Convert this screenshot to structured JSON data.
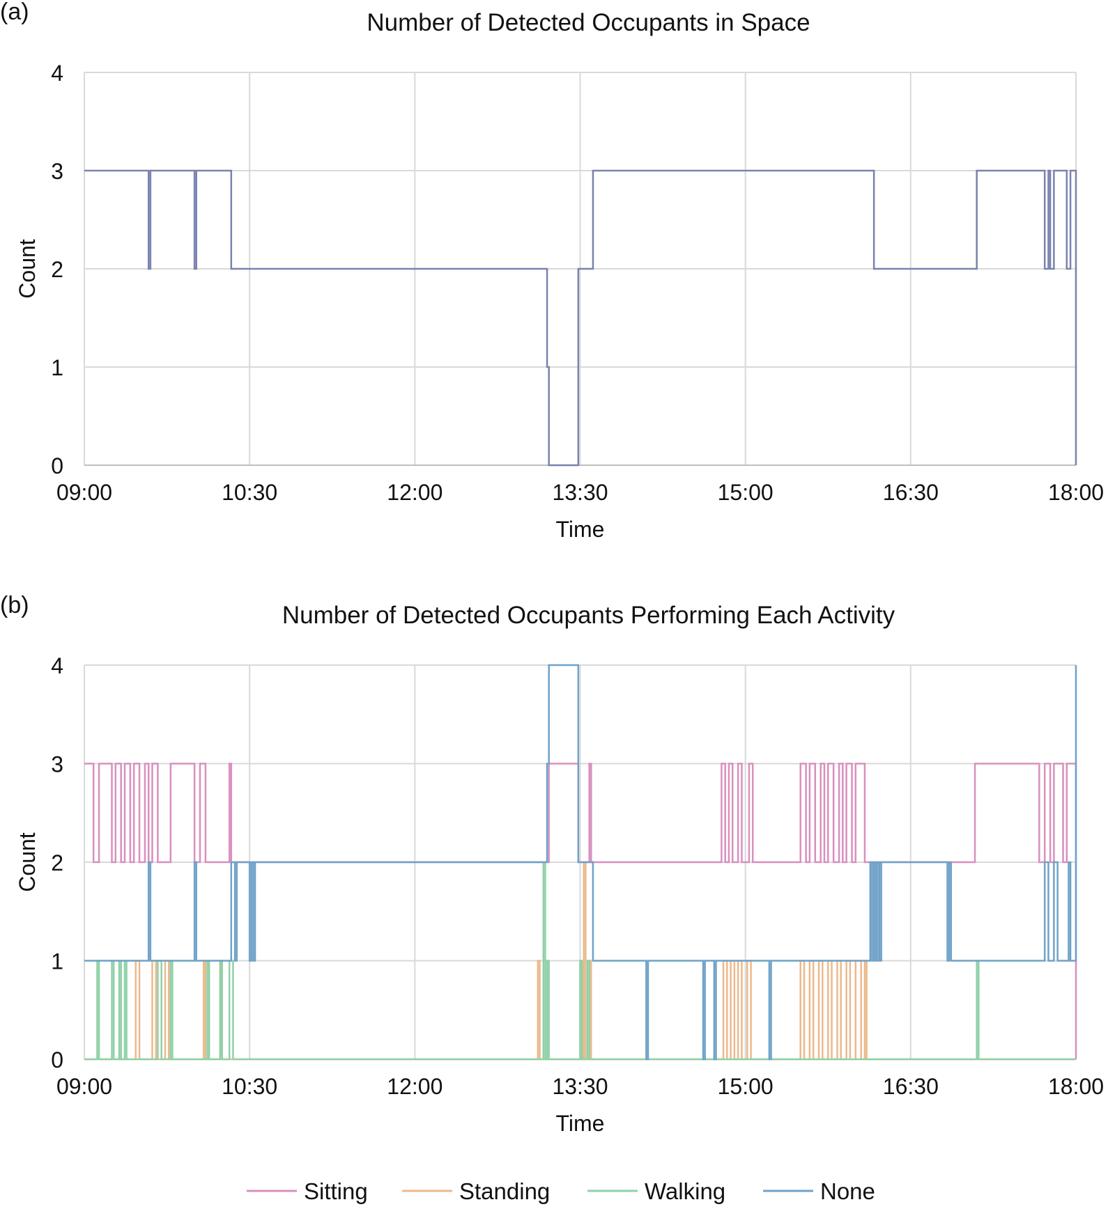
{
  "figure": {
    "colors": {
      "grid": "#d9d9d9",
      "axis": "#bfbfbf",
      "total": "#7a82ad"
    }
  },
  "chart_data": [
    {
      "panel_label": "(a)",
      "type": "line",
      "title": "Number of Detected Occupants in Space",
      "xlabel": "Time",
      "ylabel": "Count",
      "x_ticks": [
        "09:00",
        "10:30",
        "12:00",
        "13:30",
        "15:00",
        "16:30",
        "18:00"
      ],
      "y_ticks": [
        "0",
        "1",
        "2",
        "3",
        "4"
      ],
      "xlim": [
        "09:00",
        "18:00"
      ],
      "ylim": [
        0,
        4
      ],
      "grid": true,
      "series": [
        {
          "color": "#7a82ad",
          "points": [
            [
              "09:00",
              3
            ],
            [
              "09:35",
              2
            ],
            [
              "09:36",
              3
            ],
            [
              "09:47",
              3
            ],
            [
              "10:00",
              2
            ],
            [
              "10:01",
              3
            ],
            [
              "10:20",
              2
            ],
            [
              "13:12",
              1
            ],
            [
              "13:13",
              0
            ],
            [
              "13:29",
              2
            ],
            [
              "13:37",
              3
            ],
            [
              "16:10",
              2
            ],
            [
              "17:06",
              3
            ],
            [
              "17:43",
              2
            ],
            [
              "17:45",
              3
            ],
            [
              "17:46",
              2
            ],
            [
              "17:48",
              3
            ],
            [
              "17:51",
              3
            ],
            [
              "17:55",
              2
            ],
            [
              "17:57",
              3
            ],
            [
              "18:00",
              0
            ]
          ]
        }
      ]
    },
    {
      "panel_label": "(b)",
      "type": "line",
      "title": "Number of Detected Occupants Performing Each Activity",
      "xlabel": "Time",
      "ylabel": "Count",
      "x_ticks": [
        "09:00",
        "10:30",
        "12:00",
        "13:30",
        "15:00",
        "16:30",
        "18:00"
      ],
      "y_ticks": [
        "0",
        "1",
        "2",
        "3",
        "4"
      ],
      "xlim": [
        "09:00",
        "18:00"
      ],
      "ylim": [
        0,
        4
      ],
      "grid": true,
      "legend_position": "bottom",
      "series": [
        {
          "name": "Sitting",
          "color": "#d98fbe",
          "points": [
            [
              "09:00",
              3
            ],
            [
              "09:05",
              2
            ],
            [
              "09:08",
              3
            ],
            [
              "09:15",
              2
            ],
            [
              "09:17",
              3
            ],
            [
              "09:20",
              2
            ],
            [
              "09:22",
              3
            ],
            [
              "09:25",
              2
            ],
            [
              "09:27",
              3
            ],
            [
              "09:30",
              2
            ],
            [
              "09:33",
              3
            ],
            [
              "09:35",
              2
            ],
            [
              "09:37",
              3
            ],
            [
              "09:40",
              2
            ],
            [
              "09:47",
              3
            ],
            [
              "10:00",
              2
            ],
            [
              "10:03",
              3
            ],
            [
              "10:06",
              2
            ],
            [
              "10:19",
              3
            ],
            [
              "10:20",
              2
            ],
            [
              "13:12",
              2
            ],
            [
              "13:13",
              3
            ],
            [
              "13:29",
              2
            ],
            [
              "13:35",
              3
            ],
            [
              "13:36",
              2
            ],
            [
              "14:47",
              3
            ],
            [
              "14:49",
              2
            ],
            [
              "14:51",
              3
            ],
            [
              "14:53",
              2
            ],
            [
              "14:56",
              3
            ],
            [
              "14:58",
              2
            ],
            [
              "15:02",
              3
            ],
            [
              "15:04",
              2
            ],
            [
              "15:30",
              3
            ],
            [
              "15:33",
              2
            ],
            [
              "15:35",
              3
            ],
            [
              "15:38",
              2
            ],
            [
              "15:41",
              3
            ],
            [
              "15:43",
              2
            ],
            [
              "15:45",
              3
            ],
            [
              "15:48",
              2
            ],
            [
              "15:51",
              3
            ],
            [
              "15:53",
              2
            ],
            [
              "15:55",
              3
            ],
            [
              "15:58",
              2
            ],
            [
              "16:00",
              3
            ],
            [
              "16:05",
              2
            ],
            [
              "17:05",
              3
            ],
            [
              "17:40",
              2
            ],
            [
              "17:43",
              3
            ],
            [
              "17:46",
              2
            ],
            [
              "17:48",
              3
            ],
            [
              "17:53",
              2
            ],
            [
              "17:55",
              3
            ],
            [
              "18:00",
              0
            ]
          ]
        },
        {
          "name": "Standing",
          "color": "#ecb98c",
          "points": [
            [
              "09:00",
              0
            ],
            [
              "09:28",
              1
            ],
            [
              "09:30",
              0
            ],
            [
              "09:37",
              1
            ],
            [
              "09:39",
              0
            ],
            [
              "09:44",
              1
            ],
            [
              "09:46",
              0
            ],
            [
              "10:05",
              1
            ],
            [
              "10:06",
              0
            ],
            [
              "10:14",
              1
            ],
            [
              "10:15",
              0
            ],
            [
              "13:07",
              1
            ],
            [
              "13:08",
              0
            ],
            [
              "13:30",
              1
            ],
            [
              "13:31",
              0
            ],
            [
              "13:32",
              2
            ],
            [
              "13:33",
              0
            ],
            [
              "13:35",
              1
            ],
            [
              "13:36",
              0
            ],
            [
              "14:48",
              1
            ],
            [
              "14:50",
              0
            ],
            [
              "14:52",
              1
            ],
            [
              "14:54",
              0
            ],
            [
              "14:56",
              1
            ],
            [
              "14:58",
              0
            ],
            [
              "15:01",
              1
            ],
            [
              "15:03",
              0
            ],
            [
              "15:30",
              1
            ],
            [
              "15:32",
              0
            ],
            [
              "15:35",
              1
            ],
            [
              "15:37",
              0
            ],
            [
              "15:40",
              1
            ],
            [
              "15:42",
              0
            ],
            [
              "15:45",
              1
            ],
            [
              "15:47",
              0
            ],
            [
              "15:50",
              1
            ],
            [
              "15:52",
              0
            ],
            [
              "15:55",
              1
            ],
            [
              "15:57",
              0
            ],
            [
              "16:00",
              1
            ],
            [
              "16:03",
              0
            ],
            [
              "16:05",
              1
            ],
            [
              "16:06",
              0
            ],
            [
              "18:00",
              0
            ]
          ]
        },
        {
          "name": "Walking",
          "color": "#8fd1a7",
          "points": [
            [
              "09:00",
              0
            ],
            [
              "09:07",
              1
            ],
            [
              "09:08",
              0
            ],
            [
              "09:15",
              1
            ],
            [
              "09:16",
              0
            ],
            [
              "09:19",
              1
            ],
            [
              "09:20",
              0
            ],
            [
              "09:22",
              1
            ],
            [
              "09:23",
              0
            ],
            [
              "09:40",
              1
            ],
            [
              "09:42",
              0
            ],
            [
              "09:47",
              1
            ],
            [
              "09:48",
              0
            ],
            [
              "10:07",
              1
            ],
            [
              "10:08",
              0
            ],
            [
              "10:14",
              1
            ],
            [
              "10:15",
              0
            ],
            [
              "10:19",
              1
            ],
            [
              "10:21",
              0
            ],
            [
              "13:10",
              2
            ],
            [
              "13:11",
              0
            ],
            [
              "13:12",
              1
            ],
            [
              "13:13",
              0
            ],
            [
              "13:30",
              1
            ],
            [
              "13:31",
              0
            ],
            [
              "13:34",
              1
            ],
            [
              "13:35",
              0
            ],
            [
              "17:06",
              1
            ],
            [
              "17:07",
              0
            ],
            [
              "18:00",
              0
            ]
          ]
        },
        {
          "name": "None",
          "color": "#6fa2c9",
          "points": [
            [
              "09:00",
              1
            ],
            [
              "09:35",
              2
            ],
            [
              "09:36",
              1
            ],
            [
              "10:00",
              2
            ],
            [
              "10:01",
              1
            ],
            [
              "10:20",
              2
            ],
            [
              "10:22",
              1
            ],
            [
              "10:23",
              2
            ],
            [
              "10:29",
              2
            ],
            [
              "10:30",
              1
            ],
            [
              "10:31",
              2
            ],
            [
              "10:32",
              1
            ],
            [
              "10:33",
              2
            ],
            [
              "13:12",
              3
            ],
            [
              "13:13",
              4
            ],
            [
              "13:29",
              2
            ],
            [
              "13:37",
              1
            ],
            [
              "14:06",
              0
            ],
            [
              "14:07",
              1
            ],
            [
              "14:37",
              0
            ],
            [
              "14:38",
              1
            ],
            [
              "14:43",
              0
            ],
            [
              "14:44",
              1
            ],
            [
              "15:13",
              0
            ],
            [
              "15:14",
              1
            ],
            [
              "16:08",
              2
            ],
            [
              "16:09",
              1
            ],
            [
              "16:10",
              2
            ],
            [
              "16:11",
              1
            ],
            [
              "16:12",
              2
            ],
            [
              "16:13",
              1
            ],
            [
              "16:14",
              2
            ],
            [
              "16:50",
              1
            ],
            [
              "16:51",
              2
            ],
            [
              "16:52",
              1
            ],
            [
              "17:06",
              1
            ],
            [
              "17:43",
              2
            ],
            [
              "17:45",
              1
            ],
            [
              "17:48",
              2
            ],
            [
              "17:50",
              1
            ],
            [
              "17:56",
              2
            ],
            [
              "17:57",
              1
            ],
            [
              "18:00",
              4
            ]
          ]
        }
      ]
    }
  ]
}
